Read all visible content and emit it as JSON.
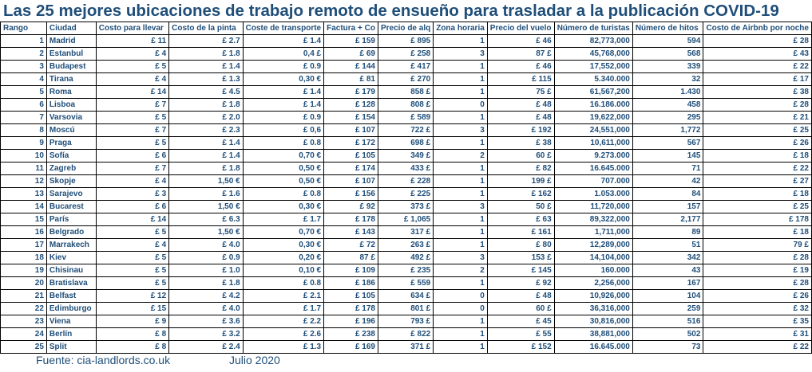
{
  "title": "Las 25 mejores ubicaciones de trabajo remoto de ensueño para trasladar a la publicación COVID-19",
  "headers": [
    "Rango",
    "Ciudad",
    "Costo para llevar",
    "Costo de la pinta",
    "Coste de transporte",
    "Factura + Co",
    "Precio de alq",
    "Zona horaria",
    "Precio del vuelo",
    "Número de turistas",
    "Número de hitos",
    "Costo de Airbnb por noche"
  ],
  "rows": [
    [
      "1",
      "Madrid",
      "£ 11",
      "£ 2.7",
      "£ 1.4",
      "£ 159",
      "£ 895",
      "1",
      "£ 46",
      "82,773,000",
      "594",
      "£ 28"
    ],
    [
      "2",
      "Estanbul",
      "£ 4",
      "£ 1.8",
      "0,4 £",
      "£ 69",
      "£ 258",
      "3",
      "87 £",
      "45,768,000",
      "568",
      "£ 43"
    ],
    [
      "3",
      "Budapest",
      "£ 5",
      "£ 1.4",
      "£ 0.9",
      "£ 144",
      "£ 417",
      "1",
      "£ 46",
      "17,552,000",
      "339",
      "£ 22"
    ],
    [
      "4",
      "Tirana",
      "£ 4",
      "£ 1.3",
      "0,30 €",
      "£ 81",
      "£ 270",
      "1",
      "£ 115",
      "5.340.000",
      "32",
      "£ 17"
    ],
    [
      "5",
      "Roma",
      "£ 14",
      "£ 4.5",
      "£ 1.4",
      "£ 179",
      "858 £",
      "1",
      "75 £",
      "61,567,200",
      "1.430",
      "£ 38"
    ],
    [
      "6",
      "Lisboa",
      "£ 7",
      "£ 1.8",
      "£ 1.4",
      "£ 128",
      "808 £",
      "0",
      "£ 48",
      "16.186.000",
      "458",
      "£ 28"
    ],
    [
      "7",
      "Varsovia",
      "£ 5",
      "£ 2.0",
      "£ 0.9",
      "£ 154",
      "£ 589",
      "1",
      "£ 48",
      "19,622,000",
      "295",
      "£ 21"
    ],
    [
      "8",
      "Moscú",
      "£ 7",
      "£ 2.3",
      "£ 0,6",
      "£ 107",
      "722 £",
      "3",
      "£ 192",
      "24,551,000",
      "1,772",
      "£ 25"
    ],
    [
      "9",
      "Praga",
      "£ 5",
      "£ 1.4",
      "£ 0.8",
      "£ 172",
      "698 £",
      "1",
      "£ 38",
      "10,611,000",
      "567",
      "£ 26"
    ],
    [
      "10",
      "Sofía",
      "£ 6",
      "£ 1.4",
      "0,70 €",
      "£ 105",
      "349 £",
      "2",
      "60 £",
      "9.273.000",
      "145",
      "£ 18"
    ],
    [
      "11",
      "Zagreb",
      "£ 7",
      "£ 1.8",
      "0,50 €",
      "£ 174",
      "433 £",
      "1",
      "£ 82",
      "16.645.000",
      "71",
      "£ 22"
    ],
    [
      "12",
      "Skopje",
      "£ 4",
      "1,50 €",
      "0,50 €",
      "£ 107",
      "£ 228",
      "1",
      "199 £",
      "707.000",
      "42",
      "£ 27"
    ],
    [
      "13",
      "Sarajevo",
      "£ 3",
      "£ 1.6",
      "£ 0.8",
      "£ 156",
      "£ 225",
      "1",
      "£ 162",
      "1.053.000",
      "84",
      "£ 18"
    ],
    [
      "14",
      "Bucarest",
      "£ 6",
      "1,50 €",
      "0,30 €",
      "£ 92",
      "373 £",
      "3",
      "50 £",
      "11,720,000",
      "157",
      "£ 25"
    ],
    [
      "15",
      "París",
      "£ 14",
      "£ 6.3",
      "£ 1.7",
      "£ 178",
      "£ 1,065",
      "1",
      "£ 63",
      "89,322,000",
      "2,177",
      "£ 178"
    ],
    [
      "16",
      "Belgrado",
      "£ 5",
      "1,50 €",
      "0,70 €",
      "£ 143",
      "317 £",
      "1",
      "£ 161",
      "1,711,000",
      "89",
      "£ 18"
    ],
    [
      "17",
      "Marrakech",
      "£ 4",
      "£ 4.0",
      "0,30 €",
      "£ 72",
      "263 £",
      "1",
      "£ 80",
      "12,289,000",
      "51",
      "79 £"
    ],
    [
      "18",
      "Kiev",
      "£ 5",
      "£ 0.9",
      "0,20 €",
      "87 £",
      "492 £",
      "3",
      "153 £",
      "14,104,000",
      "342",
      "£ 28"
    ],
    [
      "19",
      "Chisinau",
      "£ 5",
      "£ 1.0",
      "0,10 €",
      "£ 109",
      "£ 235",
      "2",
      "£ 145",
      "160.000",
      "43",
      "£ 19"
    ],
    [
      "20",
      "Bratislava",
      "£ 5",
      "£ 1.8",
      "£ 0.8",
      "£ 186",
      "£ 559",
      "1",
      "£ 92",
      "2,256,000",
      "167",
      "£ 28"
    ],
    [
      "21",
      "Belfast",
      "£ 12",
      "£ 4.2",
      "£ 2.1",
      "£ 105",
      "634 £",
      "0",
      "£ 48",
      "10,926,000",
      "104",
      "£ 26"
    ],
    [
      "22",
      "Edimburgo",
      "£ 15",
      "£ 4.0",
      "£ 1.7",
      "£ 178",
      "801 £",
      "0",
      "60 £",
      "36,316,000",
      "259",
      "£ 32"
    ],
    [
      "23",
      "Viena",
      "£ 9",
      "£ 3.6",
      "£ 2.2",
      "£ 196",
      "793 £",
      "1",
      "£ 45",
      "30,816,000",
      "516",
      "£ 35"
    ],
    [
      "24",
      "Berlín",
      "£ 8",
      "£ 3.2",
      "£ 2.6",
      "£ 238",
      "£ 822",
      "1",
      "£ 55",
      "38,881,000",
      "502",
      "£ 31"
    ],
    [
      "25",
      "Split",
      "£ 8",
      "£ 2.4",
      "£ 1.3",
      "£ 169",
      "371 £",
      "1",
      "£ 152",
      "16.645.000",
      "73",
      "£ 22"
    ]
  ],
  "footer": {
    "source": "Fuente: cia-landlords.co.uk",
    "date": "Julio 2020"
  }
}
